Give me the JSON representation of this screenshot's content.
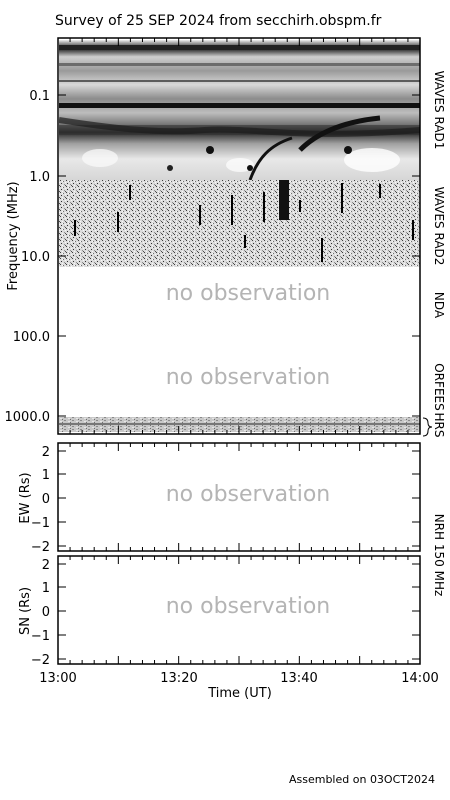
{
  "title": "Survey of 25 SEP 2024 from secchirh.obspm.fr",
  "footer": "Assembled on 03OCT2024",
  "no_observation_text": "no observation",
  "colors": {
    "frame": "#000000",
    "no_observation": "#b4b4b4",
    "background": "#ffffff"
  },
  "chart_data": [
    {
      "type": "heatmap",
      "title": "Survey of 25 SEP 2024 from secchirh.obspm.fr",
      "ylabel": "Frequency (MHz)",
      "yscale": "log",
      "ylim": [
        0.02,
        1300
      ],
      "ytick_labels": [
        "0.1",
        "1.0",
        "10.0",
        "100.0",
        "1000.0"
      ],
      "yticks": [
        0.1,
        1,
        10,
        100,
        1000
      ],
      "xlabel": "Time (UT)",
      "xlim": [
        "13:00",
        "14:00"
      ],
      "xtick_labels": [
        "13:00",
        "13:20",
        "13:40",
        "14:00"
      ],
      "panels": [
        {
          "name": "WAVES RAD1",
          "range_mhz": [
            0.02,
            1.04
          ],
          "observed": true
        },
        {
          "name": "WAVES RAD2",
          "range_mhz": [
            1.04,
            13.8
          ],
          "observed": true
        },
        {
          "name": "NDA",
          "range_mhz": [
            13.8,
            140
          ],
          "observed": false
        },
        {
          "name": "ORFEES",
          "range_mhz": [
            140,
            1000
          ],
          "observed": false
        },
        {
          "name": "HRS",
          "range_mhz": [
            1000,
            1300
          ],
          "observed": true
        }
      ],
      "features": [
        {
          "desc": "drifting type III burst",
          "time": "13:38",
          "freq_range_mhz": [
            0.3,
            8
          ]
        },
        {
          "desc": "drifting emission",
          "time": "13:42-13:53",
          "freq_range_mhz": [
            0.2,
            0.7
          ]
        }
      ]
    },
    {
      "type": "heatmap",
      "panel": "NRH 150 MHz",
      "ylabel": "EW (Rs)",
      "ylim": [
        -2,
        2
      ],
      "ytick_labels": [
        "2",
        "1",
        "0",
        "−1",
        "−2"
      ],
      "observed": false
    },
    {
      "type": "heatmap",
      "panel": "NRH 150 MHz",
      "ylabel": "SN (Rs)",
      "ylim": [
        -2,
        2
      ],
      "ytick_labels": [
        "2",
        "1",
        "0",
        "−1",
        "−2"
      ],
      "observed": false
    }
  ]
}
